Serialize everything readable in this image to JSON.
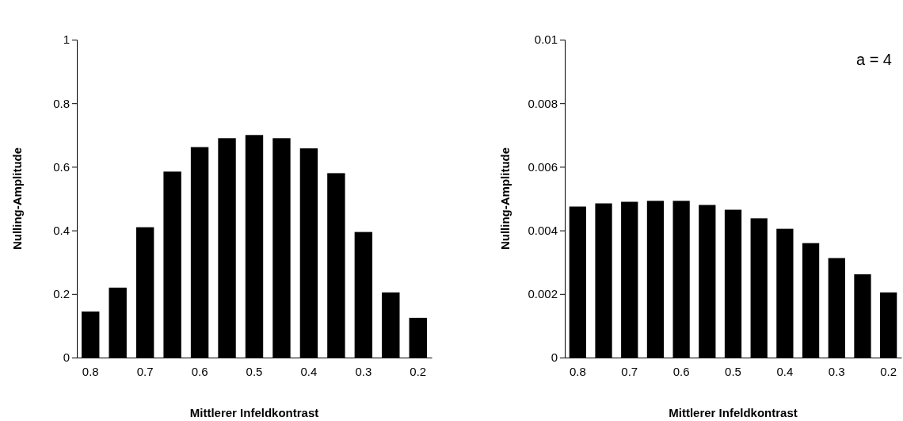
{
  "chart_data": [
    {
      "type": "bar",
      "xlabel": "Mittlerer Infeldkontrast",
      "ylabel": "Nulling-Amplitude",
      "categories": [
        "0.8",
        null,
        "0.7",
        null,
        "0.6",
        null,
        "0.5",
        null,
        "0.4",
        null,
        "0.3",
        null,
        "0.2"
      ],
      "color": "#000000",
      "values": [
        0.145,
        0.22,
        0.41,
        0.585,
        0.662,
        0.69,
        0.7,
        0.69,
        0.658,
        0.58,
        0.395,
        0.205,
        0.125
      ],
      "ylim": [
        0,
        1
      ],
      "yticks": [
        0,
        0.2,
        0.4,
        0.6,
        0.8,
        1
      ],
      "grid": false
    },
    {
      "type": "bar",
      "xlabel": "Mittlerer Infeldkontrast",
      "ylabel": "Nulling-Amplitude",
      "categories": [
        "0.8",
        null,
        "0.7",
        null,
        "0.6",
        null,
        "0.5",
        null,
        "0.4",
        null,
        "0.3",
        null,
        "0.2"
      ],
      "color": "#000000",
      "values": [
        0.00475,
        0.00485,
        0.0049,
        0.00493,
        0.00493,
        0.0048,
        0.00465,
        0.00438,
        0.00405,
        0.0036,
        0.00313,
        0.00262,
        0.00205
      ],
      "ylim": [
        0,
        0.01
      ],
      "yticks": [
        0,
        0.002,
        0.004,
        0.006,
        0.008,
        0.01
      ],
      "grid": false,
      "annotations": [
        "a = 4"
      ]
    }
  ]
}
